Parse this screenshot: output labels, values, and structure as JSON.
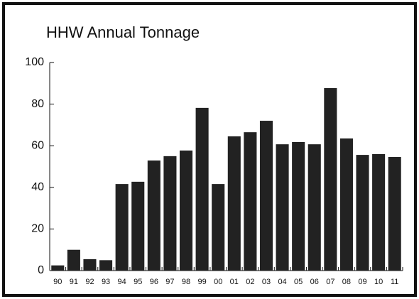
{
  "chart_data": {
    "type": "bar",
    "title": "HHW Annual Tonnage",
    "categories": [
      "90",
      "91",
      "92",
      "93",
      "94",
      "95",
      "96",
      "97",
      "98",
      "99",
      "00",
      "01",
      "02",
      "03",
      "04",
      "05",
      "06",
      "07",
      "08",
      "09",
      "10",
      "11"
    ],
    "values": [
      2.5,
      10,
      5.5,
      5,
      41.6,
      42.7,
      52.9,
      55,
      57.7,
      78.2,
      41.6,
      64.5,
      66.5,
      72,
      60.7,
      61.8,
      60.7,
      87.7,
      63.5,
      55.6,
      56,
      54.6
    ],
    "color": "#222222",
    "ylim": [
      0,
      100
    ],
    "yticks": [
      0,
      20,
      40,
      60,
      80,
      100
    ],
    "grid": false
  }
}
